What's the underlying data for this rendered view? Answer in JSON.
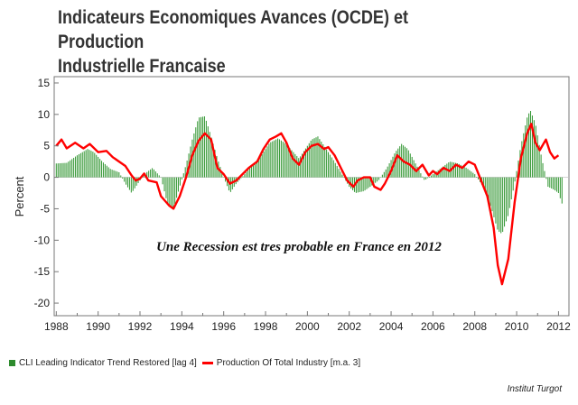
{
  "title_line1": "Indicateurs Economiques Avances (OCDE) et Production",
  "title_line2": "Industrielle Francaise",
  "annotation": "Une Recession est tres probable en France en 2012",
  "source": "Institut Turgot",
  "legend": {
    "bars": "CLI Leading Indicator Trend Restored [lag 4]",
    "line": "Production Of Total Industry [m.a. 3]"
  },
  "colors": {
    "bars": "#3a9a3a",
    "line": "#ff0000",
    "border": "#777777"
  },
  "chart_data": {
    "type": "bar+line",
    "ylabel": "Percent",
    "xlabel": "",
    "ylim": [
      -22,
      16
    ],
    "xlim": [
      1987.9,
      2012.5
    ],
    "yticks": [
      15,
      10,
      5,
      0,
      -5,
      -10,
      -15,
      -20
    ],
    "xticks": [
      1988,
      1990,
      1992,
      1994,
      1996,
      1998,
      2000,
      2002,
      2004,
      2006,
      2008,
      2010,
      2012
    ],
    "series": [
      {
        "name": "CLI Leading Indicator Trend Restored [lag 4]",
        "kind": "bar",
        "points": [
          [
            1988.0,
            2.2
          ],
          [
            1988.5,
            2.3
          ],
          [
            1989.0,
            3.5
          ],
          [
            1989.5,
            4.5
          ],
          [
            1989.8,
            4.0
          ],
          [
            1990.2,
            2.5
          ],
          [
            1990.6,
            1.3
          ],
          [
            1991.0,
            0.8
          ],
          [
            1991.3,
            -1.0
          ],
          [
            1991.6,
            -2.5
          ],
          [
            1991.9,
            -1.0
          ],
          [
            1992.2,
            0.5
          ],
          [
            1992.6,
            1.5
          ],
          [
            1993.0,
            0.0
          ],
          [
            1993.3,
            -4.0
          ],
          [
            1993.6,
            -5.0
          ],
          [
            1993.9,
            -1.5
          ],
          [
            1994.2,
            2.0
          ],
          [
            1994.5,
            6.0
          ],
          [
            1994.8,
            9.5
          ],
          [
            1995.1,
            9.7
          ],
          [
            1995.4,
            6.5
          ],
          [
            1995.7,
            3.0
          ],
          [
            1996.0,
            0.0
          ],
          [
            1996.3,
            -2.5
          ],
          [
            1996.6,
            -1.0
          ],
          [
            1997.0,
            0.5
          ],
          [
            1997.4,
            2.0
          ],
          [
            1997.8,
            3.5
          ],
          [
            1998.2,
            5.5
          ],
          [
            1998.6,
            6.2
          ],
          [
            1998.9,
            5.5
          ],
          [
            1999.2,
            4.5
          ],
          [
            1999.6,
            3.0
          ],
          [
            1999.9,
            4.5
          ],
          [
            2000.2,
            6.0
          ],
          [
            2000.5,
            6.5
          ],
          [
            2000.8,
            5.0
          ],
          [
            2001.2,
            3.0
          ],
          [
            2001.6,
            0.8
          ],
          [
            2002.0,
            -1.5
          ],
          [
            2002.3,
            -2.5
          ],
          [
            2002.7,
            -2.2
          ],
          [
            2003.0,
            -1.5
          ],
          [
            2003.4,
            -0.5
          ],
          [
            2003.8,
            1.5
          ],
          [
            2004.2,
            4.0
          ],
          [
            2004.5,
            5.3
          ],
          [
            2004.8,
            4.5
          ],
          [
            2005.2,
            2.0
          ],
          [
            2005.6,
            -0.5
          ],
          [
            2006.0,
            0.5
          ],
          [
            2006.4,
            1.5
          ],
          [
            2006.8,
            2.5
          ],
          [
            2007.2,
            2.2
          ],
          [
            2007.6,
            1.5
          ],
          [
            2008.0,
            0.5
          ],
          [
            2008.4,
            -1.5
          ],
          [
            2008.8,
            -5.0
          ],
          [
            2009.1,
            -8.5
          ],
          [
            2009.3,
            -9.0
          ],
          [
            2009.6,
            -6.0
          ],
          [
            2009.9,
            -1.0
          ],
          [
            2010.2,
            5.0
          ],
          [
            2010.5,
            9.5
          ],
          [
            2010.65,
            10.7
          ],
          [
            2010.9,
            8.5
          ],
          [
            2011.2,
            3.0
          ],
          [
            2011.5,
            -1.5
          ],
          [
            2011.8,
            -2.0
          ],
          [
            2012.0,
            -2.5
          ],
          [
            2012.2,
            -4.5
          ]
        ]
      },
      {
        "name": "Production Of Total Industry [m.a. 3]",
        "kind": "line",
        "points": [
          [
            1988.0,
            5.0
          ],
          [
            1988.25,
            6.0
          ],
          [
            1988.5,
            4.6
          ],
          [
            1988.9,
            5.5
          ],
          [
            1989.3,
            4.6
          ],
          [
            1989.6,
            5.3
          ],
          [
            1990.0,
            4.0
          ],
          [
            1990.4,
            4.2
          ],
          [
            1990.7,
            3.2
          ],
          [
            1991.0,
            2.5
          ],
          [
            1991.3,
            1.8
          ],
          [
            1991.6,
            0.3
          ],
          [
            1991.8,
            -0.5
          ],
          [
            1992.0,
            -0.2
          ],
          [
            1992.2,
            0.6
          ],
          [
            1992.4,
            -0.5
          ],
          [
            1992.8,
            -0.8
          ],
          [
            1993.0,
            -3.0
          ],
          [
            1993.4,
            -4.5
          ],
          [
            1993.6,
            -5.0
          ],
          [
            1993.9,
            -3.0
          ],
          [
            1994.2,
            0.0
          ],
          [
            1994.5,
            3.5
          ],
          [
            1994.8,
            5.8
          ],
          [
            1995.1,
            7.0
          ],
          [
            1995.4,
            6.0
          ],
          [
            1995.7,
            1.5
          ],
          [
            1996.0,
            0.5
          ],
          [
            1996.3,
            -1.0
          ],
          [
            1996.6,
            -0.5
          ],
          [
            1996.9,
            0.5
          ],
          [
            1997.2,
            1.5
          ],
          [
            1997.6,
            2.5
          ],
          [
            1997.9,
            4.5
          ],
          [
            1998.2,
            6.0
          ],
          [
            1998.5,
            6.5
          ],
          [
            1998.75,
            7.0
          ],
          [
            1999.0,
            5.5
          ],
          [
            1999.3,
            3.0
          ],
          [
            1999.6,
            2.0
          ],
          [
            1999.9,
            4.0
          ],
          [
            2000.2,
            5.0
          ],
          [
            2000.5,
            5.3
          ],
          [
            2000.8,
            4.5
          ],
          [
            2001.0,
            4.8
          ],
          [
            2001.3,
            3.5
          ],
          [
            2001.6,
            1.5
          ],
          [
            2001.9,
            -0.5
          ],
          [
            2002.2,
            -1.5
          ],
          [
            2002.4,
            -0.5
          ],
          [
            2002.7,
            0.0
          ],
          [
            2003.0,
            0.0
          ],
          [
            2003.2,
            -1.5
          ],
          [
            2003.5,
            -2.0
          ],
          [
            2003.7,
            -1.0
          ],
          [
            2004.0,
            1.0
          ],
          [
            2004.3,
            3.5
          ],
          [
            2004.6,
            2.5
          ],
          [
            2004.9,
            2.0
          ],
          [
            2005.2,
            1.0
          ],
          [
            2005.5,
            2.0
          ],
          [
            2005.8,
            0.3
          ],
          [
            2006.0,
            1.0
          ],
          [
            2006.2,
            0.5
          ],
          [
            2006.5,
            1.5
          ],
          [
            2006.8,
            1.0
          ],
          [
            2007.1,
            2.0
          ],
          [
            2007.4,
            1.5
          ],
          [
            2007.7,
            2.5
          ],
          [
            2008.0,
            2.0
          ],
          [
            2008.3,
            -0.5
          ],
          [
            2008.6,
            -3.0
          ],
          [
            2008.9,
            -8.0
          ],
          [
            2009.1,
            -14.0
          ],
          [
            2009.3,
            -17.0
          ],
          [
            2009.6,
            -13.0
          ],
          [
            2009.9,
            -4.0
          ],
          [
            2010.2,
            3.0
          ],
          [
            2010.5,
            7.0
          ],
          [
            2010.7,
            8.5
          ],
          [
            2010.9,
            5.5
          ],
          [
            2011.1,
            4.3
          ],
          [
            2011.4,
            6.0
          ],
          [
            2011.6,
            4.0
          ],
          [
            2011.8,
            3.0
          ],
          [
            2012.0,
            3.5
          ]
        ]
      }
    ]
  }
}
